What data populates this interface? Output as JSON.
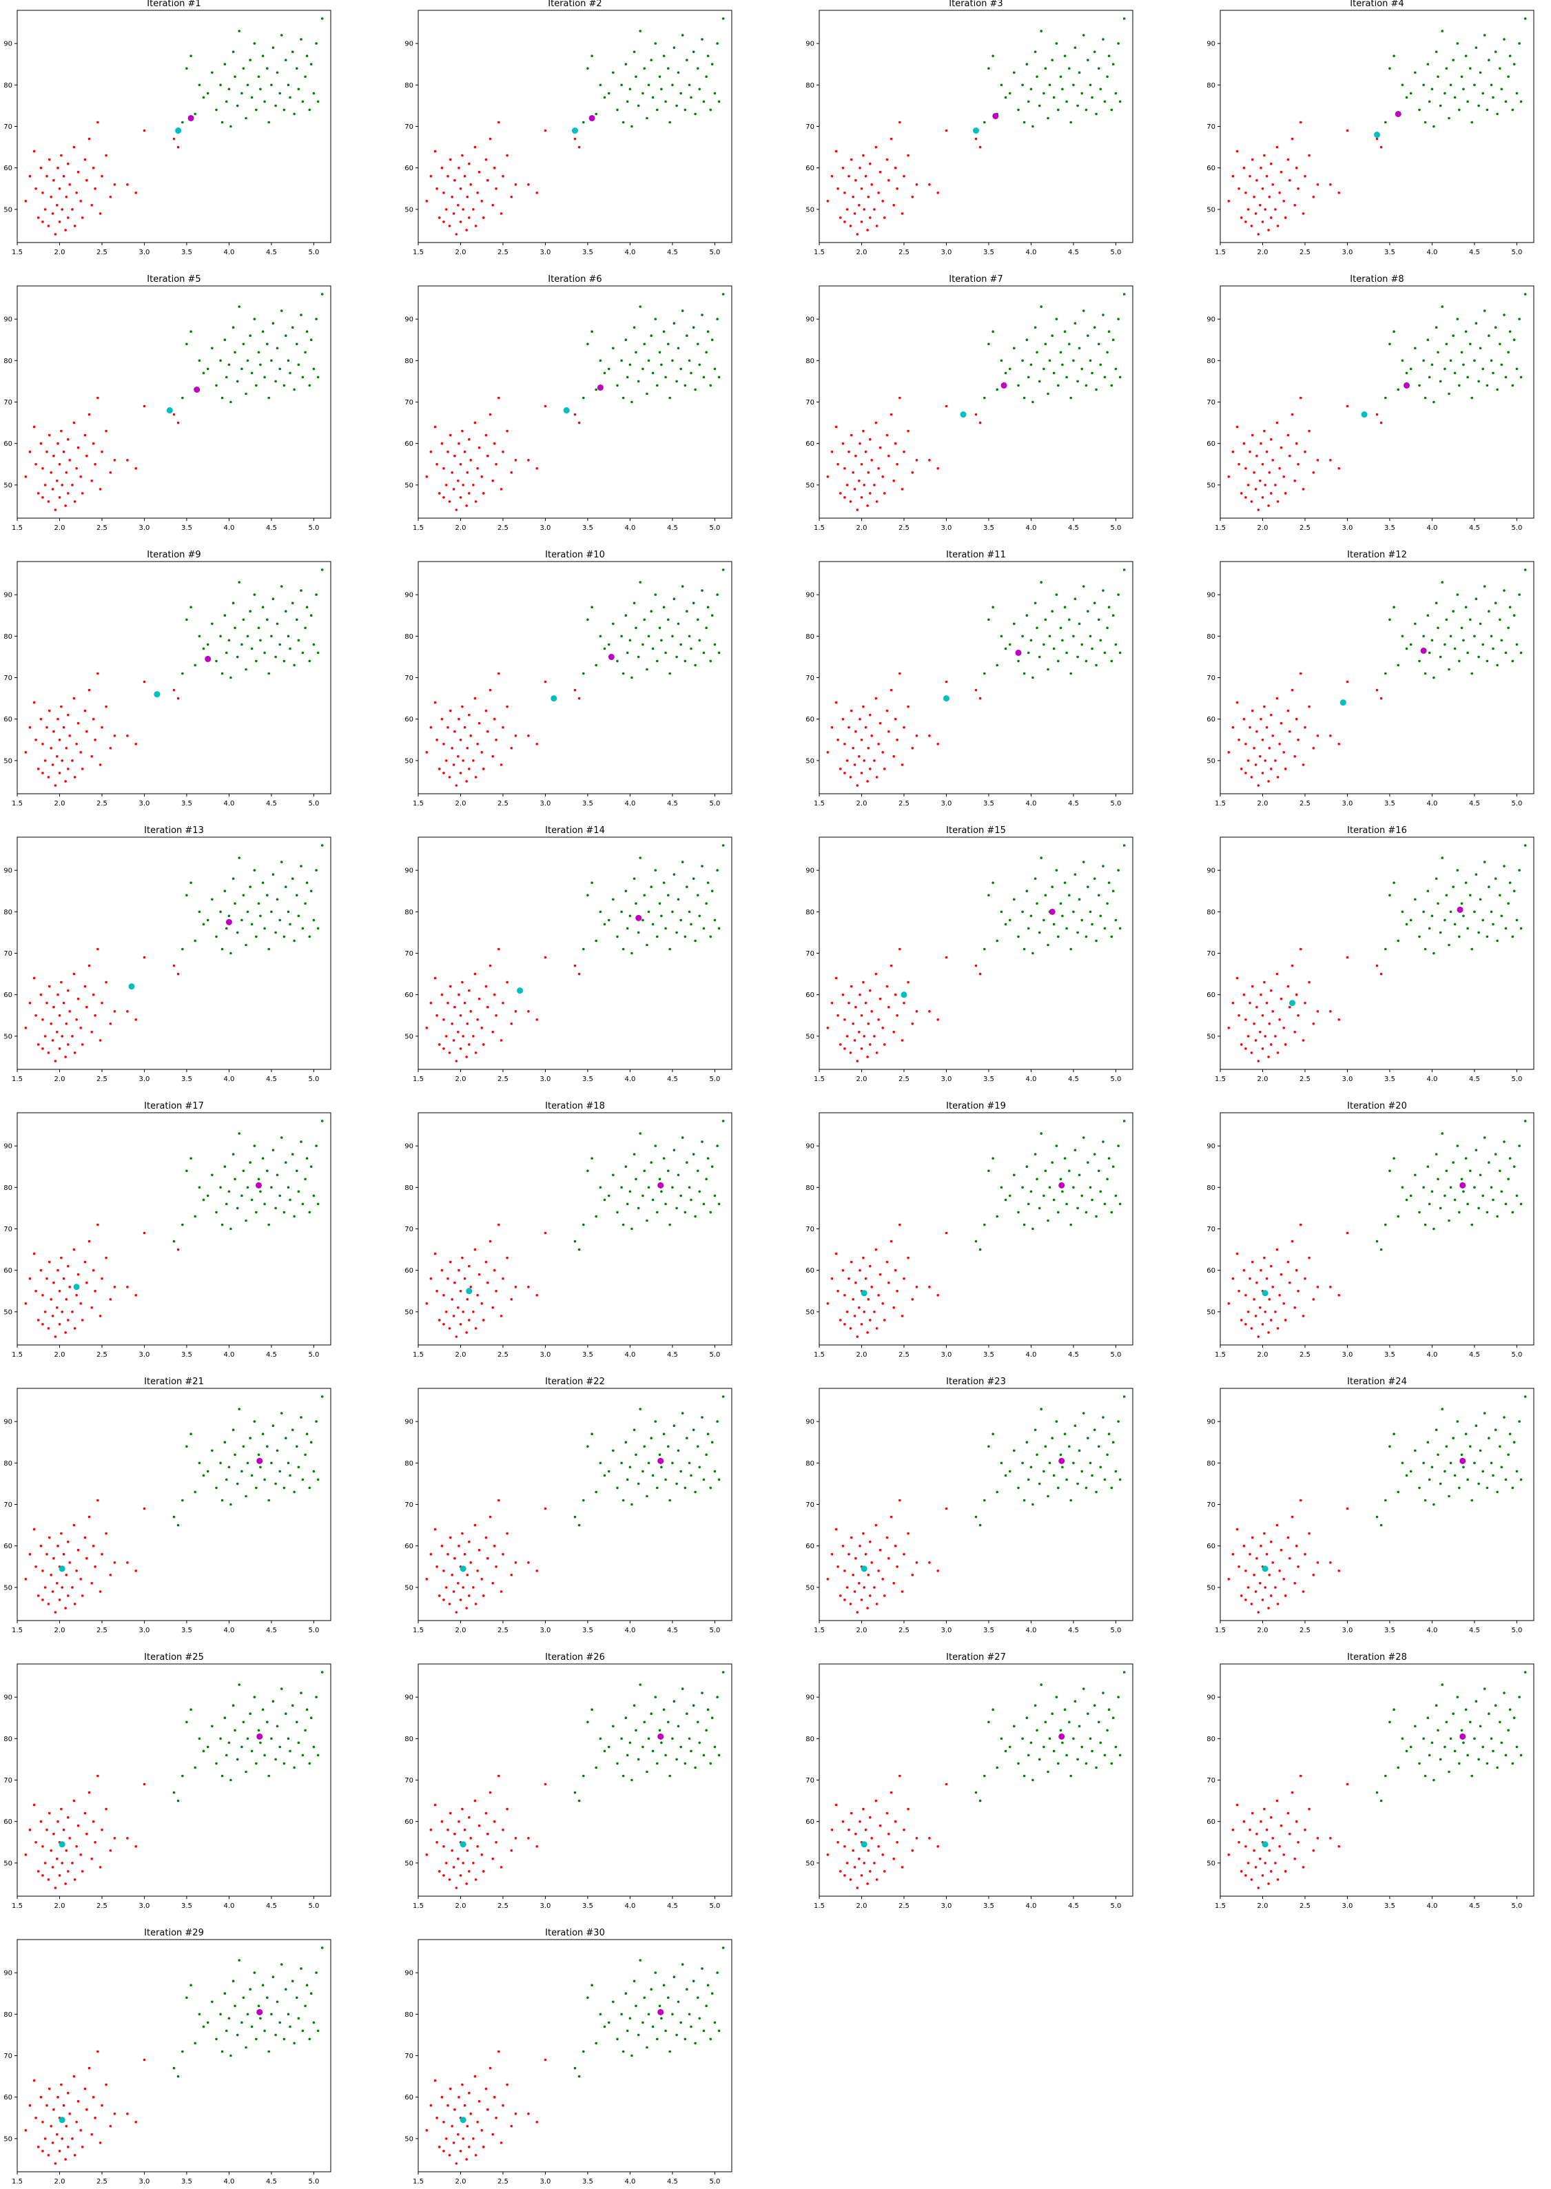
{
  "chart_data": {
    "type": "scatter",
    "panel_title_prefix": "Iteration #",
    "panel_count": 30,
    "grid_columns": 4,
    "xlim": [
      1.5,
      5.2
    ],
    "ylim": [
      42,
      98
    ],
    "xticks": [
      1.5,
      2.0,
      2.5,
      3.0,
      3.5,
      4.0,
      4.5,
      5.0
    ],
    "yticks": [
      50,
      60,
      70,
      80,
      90
    ],
    "grid": false,
    "colors": {
      "cluster_a": "#ff0000",
      "cluster_b": "#008000",
      "centroid_a": "#00bfbf",
      "centroid_b": "#bf00bf",
      "axes": "#000000",
      "text": "#000000"
    },
    "titles": [
      "Iteration #1",
      "Iteration #2",
      "Iteration #3",
      "Iteration #4",
      "Iteration #5",
      "Iteration #6",
      "Iteration #7",
      "Iteration #8",
      "Iteration #9",
      "Iteration #10",
      "Iteration #11",
      "Iteration #12",
      "Iteration #13",
      "Iteration #14",
      "Iteration #15",
      "Iteration #16",
      "Iteration #17",
      "Iteration #18",
      "Iteration #19",
      "Iteration #20",
      "Iteration #21",
      "Iteration #22",
      "Iteration #23",
      "Iteration #24",
      "Iteration #25",
      "Iteration #26",
      "Iteration #27",
      "Iteration #28",
      "Iteration #29",
      "Iteration #30"
    ],
    "points": [
      [
        1.6,
        52
      ],
      [
        1.65,
        58
      ],
      [
        1.7,
        64
      ],
      [
        1.72,
        55
      ],
      [
        1.75,
        48
      ],
      [
        1.78,
        60
      ],
      [
        1.8,
        47
      ],
      [
        1.8,
        54
      ],
      [
        1.83,
        50
      ],
      [
        1.85,
        58
      ],
      [
        1.87,
        46
      ],
      [
        1.88,
        62
      ],
      [
        1.9,
        53
      ],
      [
        1.92,
        49
      ],
      [
        1.93,
        57
      ],
      [
        1.95,
        44
      ],
      [
        1.97,
        51
      ],
      [
        1.98,
        60
      ],
      [
        2.0,
        47
      ],
      [
        2.0,
        55
      ],
      [
        2.02,
        63
      ],
      [
        2.03,
        50
      ],
      [
        2.05,
        58
      ],
      [
        2.07,
        45
      ],
      [
        2.08,
        53
      ],
      [
        2.1,
        48
      ],
      [
        2.1,
        61
      ],
      [
        2.12,
        56
      ],
      [
        2.15,
        50
      ],
      [
        2.17,
        65
      ],
      [
        2.18,
        46
      ],
      [
        2.2,
        54
      ],
      [
        2.22,
        59
      ],
      [
        2.25,
        52
      ],
      [
        2.27,
        48
      ],
      [
        2.3,
        62
      ],
      [
        2.32,
        57
      ],
      [
        2.35,
        67
      ],
      [
        2.38,
        51
      ],
      [
        2.4,
        60
      ],
      [
        2.42,
        55
      ],
      [
        2.45,
        71
      ],
      [
        2.48,
        49
      ],
      [
        2.5,
        58
      ],
      [
        2.55,
        63
      ],
      [
        2.6,
        53
      ],
      [
        2.65,
        56
      ],
      [
        2.8,
        56
      ],
      [
        2.9,
        54
      ],
      [
        3.0,
        69
      ],
      [
        3.35,
        67
      ],
      [
        3.4,
        65
      ],
      [
        3.45,
        71
      ],
      [
        3.5,
        84
      ],
      [
        3.55,
        87
      ],
      [
        3.6,
        73
      ],
      [
        3.65,
        80
      ],
      [
        3.7,
        77
      ],
      [
        3.75,
        78
      ],
      [
        3.8,
        83
      ],
      [
        3.85,
        74
      ],
      [
        3.9,
        80
      ],
      [
        3.92,
        71
      ],
      [
        3.95,
        85
      ],
      [
        3.97,
        76
      ],
      [
        4.0,
        79
      ],
      [
        4.02,
        70
      ],
      [
        4.05,
        88
      ],
      [
        4.07,
        82
      ],
      [
        4.1,
        75
      ],
      [
        4.12,
        93
      ],
      [
        4.15,
        78
      ],
      [
        4.17,
        84
      ],
      [
        4.2,
        72
      ],
      [
        4.22,
        80
      ],
      [
        4.25,
        86
      ],
      [
        4.27,
        77
      ],
      [
        4.3,
        90
      ],
      [
        4.32,
        74
      ],
      [
        4.35,
        82
      ],
      [
        4.37,
        79
      ],
      [
        4.4,
        87
      ],
      [
        4.42,
        76
      ],
      [
        4.45,
        84
      ],
      [
        4.47,
        71
      ],
      [
        4.5,
        80
      ],
      [
        4.52,
        89
      ],
      [
        4.55,
        75
      ],
      [
        4.57,
        83
      ],
      [
        4.6,
        78
      ],
      [
        4.62,
        92
      ],
      [
        4.65,
        74
      ],
      [
        4.67,
        86
      ],
      [
        4.7,
        80
      ],
      [
        4.72,
        77
      ],
      [
        4.75,
        88
      ],
      [
        4.77,
        73
      ],
      [
        4.8,
        84
      ],
      [
        4.82,
        79
      ],
      [
        4.85,
        91
      ],
      [
        4.87,
        76
      ],
      [
        4.9,
        82
      ],
      [
        4.92,
        87
      ],
      [
        4.95,
        74
      ],
      [
        4.97,
        85
      ],
      [
        5.0,
        78
      ],
      [
        5.03,
        90
      ],
      [
        5.05,
        76
      ],
      [
        5.1,
        96
      ]
    ],
    "centroids_a": [
      [
        3.4,
        69
      ],
      [
        3.35,
        69
      ],
      [
        3.35,
        69
      ],
      [
        3.35,
        68
      ],
      [
        3.3,
        68
      ],
      [
        3.25,
        68
      ],
      [
        3.2,
        67
      ],
      [
        3.2,
        67
      ],
      [
        3.15,
        66
      ],
      [
        3.1,
        65
      ],
      [
        3.0,
        65
      ],
      [
        2.95,
        64
      ],
      [
        2.85,
        62
      ],
      [
        2.7,
        61
      ],
      [
        2.5,
        60
      ],
      [
        2.35,
        58
      ],
      [
        2.2,
        56
      ],
      [
        2.1,
        55
      ],
      [
        2.03,
        54.5
      ],
      [
        2.03,
        54.5
      ],
      [
        2.03,
        54.5
      ],
      [
        2.03,
        54.5
      ],
      [
        2.03,
        54.5
      ],
      [
        2.03,
        54.5
      ],
      [
        2.03,
        54.5
      ],
      [
        2.03,
        54.5
      ],
      [
        2.03,
        54.5
      ],
      [
        2.03,
        54.5
      ],
      [
        2.03,
        54.5
      ],
      [
        2.03,
        54.5
      ]
    ],
    "centroids_b": [
      [
        3.55,
        72
      ],
      [
        3.55,
        72
      ],
      [
        3.58,
        72.5
      ],
      [
        3.6,
        73
      ],
      [
        3.62,
        73
      ],
      [
        3.65,
        73.5
      ],
      [
        3.68,
        74
      ],
      [
        3.7,
        74
      ],
      [
        3.75,
        74.5
      ],
      [
        3.78,
        75
      ],
      [
        3.85,
        76
      ],
      [
        3.9,
        76.5
      ],
      [
        4.0,
        77.5
      ],
      [
        4.1,
        78.5
      ],
      [
        4.25,
        80
      ],
      [
        4.33,
        80.5
      ],
      [
        4.35,
        80.5
      ],
      [
        4.36,
        80.5
      ],
      [
        4.36,
        80.5
      ],
      [
        4.36,
        80.5
      ],
      [
        4.36,
        80.5
      ],
      [
        4.36,
        80.5
      ],
      [
        4.36,
        80.5
      ],
      [
        4.36,
        80.5
      ],
      [
        4.36,
        80.5
      ],
      [
        4.36,
        80.5
      ],
      [
        4.36,
        80.5
      ],
      [
        4.36,
        80.5
      ],
      [
        4.36,
        80.5
      ],
      [
        4.36,
        80.5
      ]
    ]
  }
}
